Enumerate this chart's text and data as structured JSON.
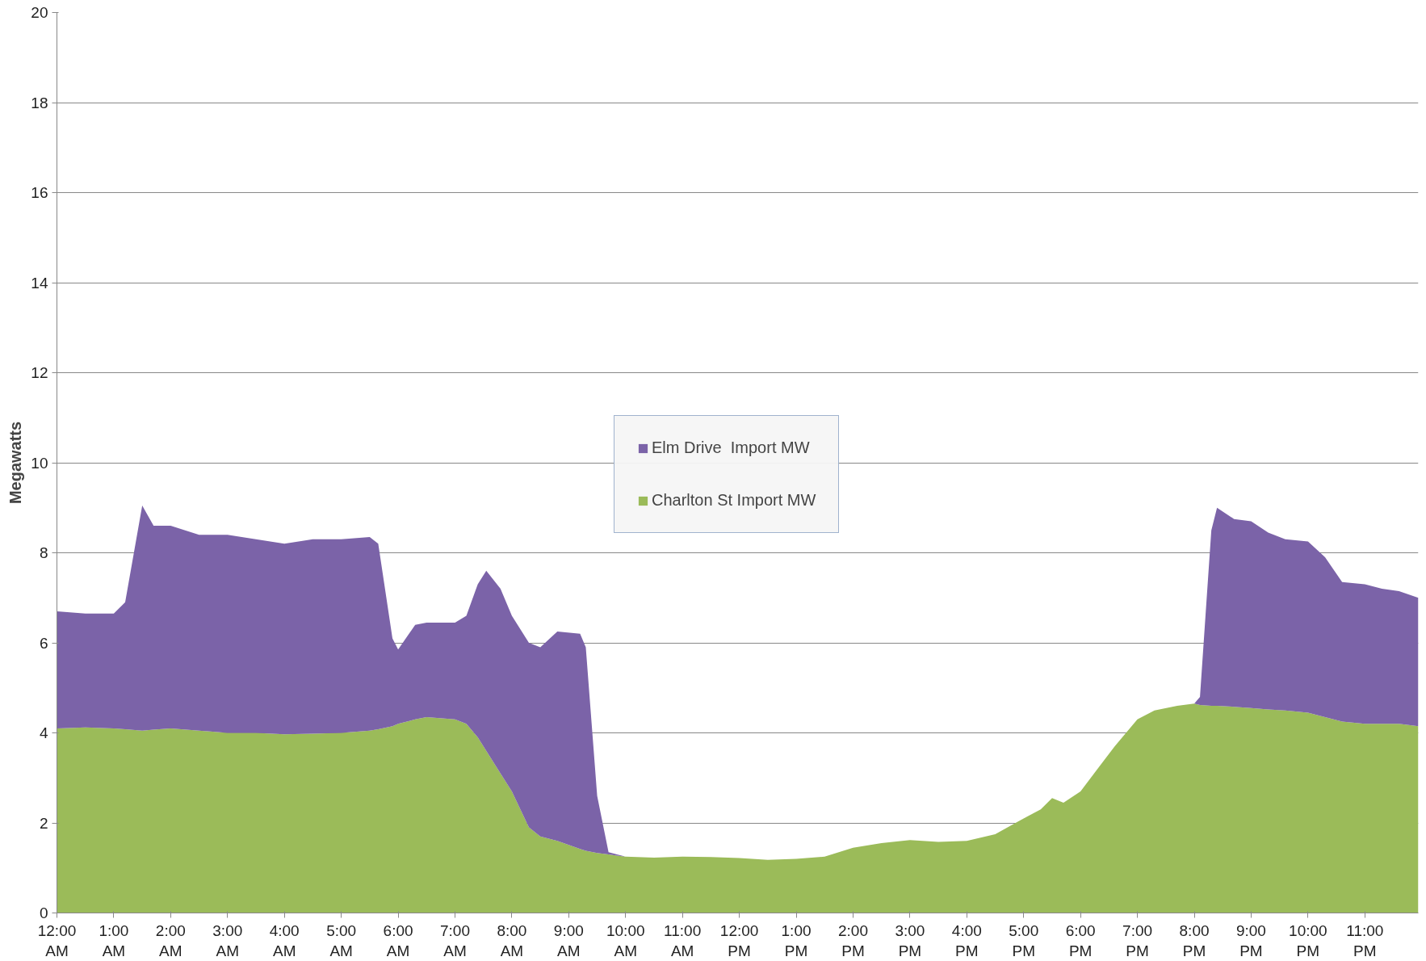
{
  "chart_data": {
    "type": "area",
    "stacked": true,
    "ylabel": "Megawatts",
    "x": [
      0,
      0.5,
      1,
      1.2,
      1.5,
      1.7,
      2,
      2.5,
      3,
      3.5,
      4,
      4.5,
      5,
      5.5,
      5.65,
      5.9,
      6.0,
      6.3,
      6.5,
      7,
      7.2,
      7.4,
      7.55,
      7.8,
      8,
      8.3,
      8.5,
      8.8,
      9.2,
      9.3,
      9.5,
      9.7,
      10,
      10.5,
      11,
      11.5,
      12,
      12.5,
      13,
      13.5,
      14,
      14.5,
      15,
      15.5,
      16,
      16.5,
      17,
      17.3,
      17.5,
      17.7,
      18,
      18.3,
      18.6,
      19,
      19.3,
      19.7,
      20,
      20.1,
      20.3,
      20.4,
      20.7,
      21,
      21.3,
      21.6,
      22,
      22.3,
      22.6,
      23,
      23.3,
      23.6,
      23.94
    ],
    "series": [
      {
        "name": "Charlton St Import MW",
        "color": "#9bbb59",
        "values": [
          4.1,
          4.12,
          4.1,
          4.08,
          4.05,
          4.07,
          4.1,
          4.05,
          4.0,
          4.0,
          3.97,
          3.98,
          4.0,
          4.05,
          4.08,
          4.15,
          4.2,
          4.3,
          4.35,
          4.3,
          4.2,
          3.9,
          3.6,
          3.1,
          2.7,
          1.9,
          1.7,
          1.6,
          1.42,
          1.38,
          1.33,
          1.3,
          1.25,
          1.23,
          1.25,
          1.24,
          1.22,
          1.18,
          1.2,
          1.25,
          1.45,
          1.55,
          1.62,
          1.58,
          1.6,
          1.75,
          2.1,
          2.3,
          2.55,
          2.45,
          2.7,
          3.2,
          3.7,
          4.3,
          4.5,
          4.6,
          4.65,
          4.62,
          4.6,
          4.6,
          4.58,
          4.55,
          4.52,
          4.5,
          4.45,
          4.35,
          4.25,
          4.2,
          4.2,
          4.2,
          4.15
        ]
      },
      {
        "name": "Elm Drive  Import MW",
        "color": "#7b63a8",
        "values": [
          2.6,
          2.53,
          2.55,
          2.82,
          5.0,
          4.53,
          4.5,
          4.35,
          4.4,
          4.3,
          4.23,
          4.32,
          4.3,
          4.3,
          4.12,
          1.95,
          1.65,
          2.1,
          2.1,
          2.15,
          2.4,
          3.4,
          4.0,
          4.1,
          3.9,
          4.1,
          4.2,
          4.65,
          4.78,
          4.52,
          1.27,
          0.05,
          0,
          0,
          0,
          0,
          0,
          0,
          0,
          0,
          0,
          0,
          0,
          0,
          0,
          0,
          0,
          0,
          0,
          0,
          0,
          0,
          0,
          0,
          0,
          0,
          0,
          0.18,
          3.9,
          4.4,
          4.17,
          4.15,
          3.93,
          3.8,
          3.8,
          3.55,
          3.1,
          3.1,
          3.0,
          2.95,
          2.85
        ]
      }
    ],
    "xlim": [
      0,
      23.94
    ],
    "xticks": [
      {
        "value": 0,
        "label": "12:00 AM"
      },
      {
        "value": 1,
        "label": "1:00 AM"
      },
      {
        "value": 2,
        "label": "2:00 AM"
      },
      {
        "value": 3,
        "label": "3:00 AM"
      },
      {
        "value": 4,
        "label": "4:00 AM"
      },
      {
        "value": 5,
        "label": "5:00 AM"
      },
      {
        "value": 6,
        "label": "6:00 AM"
      },
      {
        "value": 7,
        "label": "7:00 AM"
      },
      {
        "value": 8,
        "label": "8:00 AM"
      },
      {
        "value": 9,
        "label": "9:00 AM"
      },
      {
        "value": 10,
        "label": "10:00 AM"
      },
      {
        "value": 11,
        "label": "11:00 AM"
      },
      {
        "value": 12,
        "label": "12:00 PM"
      },
      {
        "value": 13,
        "label": "1:00 PM"
      },
      {
        "value": 14,
        "label": "2:00 PM"
      },
      {
        "value": 15,
        "label": "3:00 PM"
      },
      {
        "value": 16,
        "label": "4:00 PM"
      },
      {
        "value": 17,
        "label": "5:00 PM"
      },
      {
        "value": 18,
        "label": "6:00 PM"
      },
      {
        "value": 19,
        "label": "7:00 PM"
      },
      {
        "value": 20,
        "label": "8:00 PM"
      },
      {
        "value": 21,
        "label": "9:00 PM"
      },
      {
        "value": 22,
        "label": "10:00 PM"
      },
      {
        "value": 23,
        "label": "11:00 PM"
      }
    ],
    "ylim": [
      0,
      20
    ],
    "yticks": [
      0,
      2,
      4,
      6,
      8,
      10,
      12,
      14,
      16,
      18,
      20
    ],
    "grid": "y",
    "legend": "center"
  }
}
